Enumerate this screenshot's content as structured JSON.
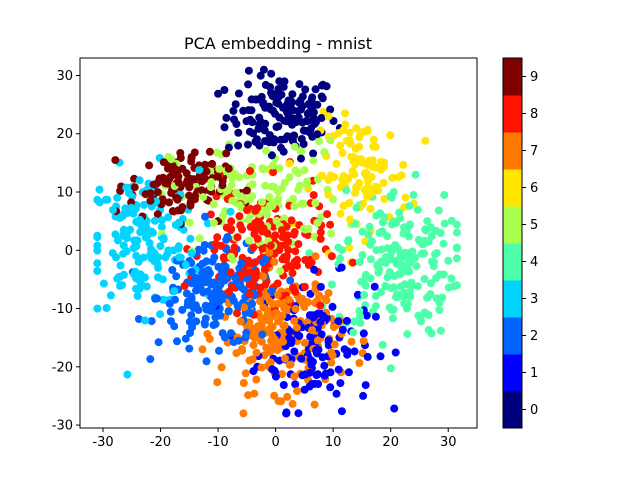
{
  "chart_data": {
    "type": "scatter",
    "title": "PCA embedding - mnist",
    "xlabel": "",
    "ylabel": "",
    "xlim": [
      -34,
      35
    ],
    "ylim": [
      -30.5,
      33
    ],
    "xticks": [
      "-30",
      "-20",
      "-10",
      "0",
      "10",
      "20",
      "30"
    ],
    "yticks": [
      "-30",
      "-20",
      "-10",
      "0",
      "10",
      "20",
      "30"
    ],
    "grid": false,
    "colormap": "jet",
    "colorbar": {
      "range": [
        -0.5,
        9.5
      ],
      "ticks": [
        "0",
        "1",
        "2",
        "3",
        "4",
        "5",
        "6",
        "7",
        "8",
        "9"
      ],
      "colors": [
        "#00007f",
        "#0000ff",
        "#0063ff",
        "#00d4ff",
        "#4effa9",
        "#a9ff4e",
        "#ffe500",
        "#ff7b00",
        "#ff1300",
        "#7f0000"
      ]
    },
    "clusters": [
      {
        "label": 0,
        "center": [
          1,
          23
        ],
        "spread": [
          4.8,
          3.6
        ],
        "count": 150
      },
      {
        "label": 1,
        "center": [
          7,
          -16
        ],
        "spread": [
          5.0,
          5.6
        ],
        "count": 130
      },
      {
        "label": 2,
        "center": [
          -10,
          -8
        ],
        "spread": [
          5.2,
          4.2
        ],
        "count": 190
      },
      {
        "label": 3,
        "center": [
          -23,
          2
        ],
        "spread": [
          4.8,
          5.8
        ],
        "count": 170
      },
      {
        "label": 4,
        "center": [
          21,
          -2
        ],
        "spread": [
          5.2,
          6.4
        ],
        "count": 190
      },
      {
        "label": 5,
        "center": [
          -3,
          9
        ],
        "spread": [
          7.5,
          4.8
        ],
        "count": 140
      },
      {
        "label": 6,
        "center": [
          15,
          13
        ],
        "spread": [
          4.2,
          4.8
        ],
        "count": 110
      },
      {
        "label": 7,
        "center": [
          1,
          -14
        ],
        "spread": [
          5.2,
          5.0
        ],
        "count": 200
      },
      {
        "label": 8,
        "center": [
          -2,
          0
        ],
        "spread": [
          5.2,
          5.2
        ],
        "count": 180
      },
      {
        "label": 9,
        "center": [
          -17,
          11
        ],
        "spread": [
          4.2,
          2.8
        ],
        "count": 120
      }
    ]
  }
}
